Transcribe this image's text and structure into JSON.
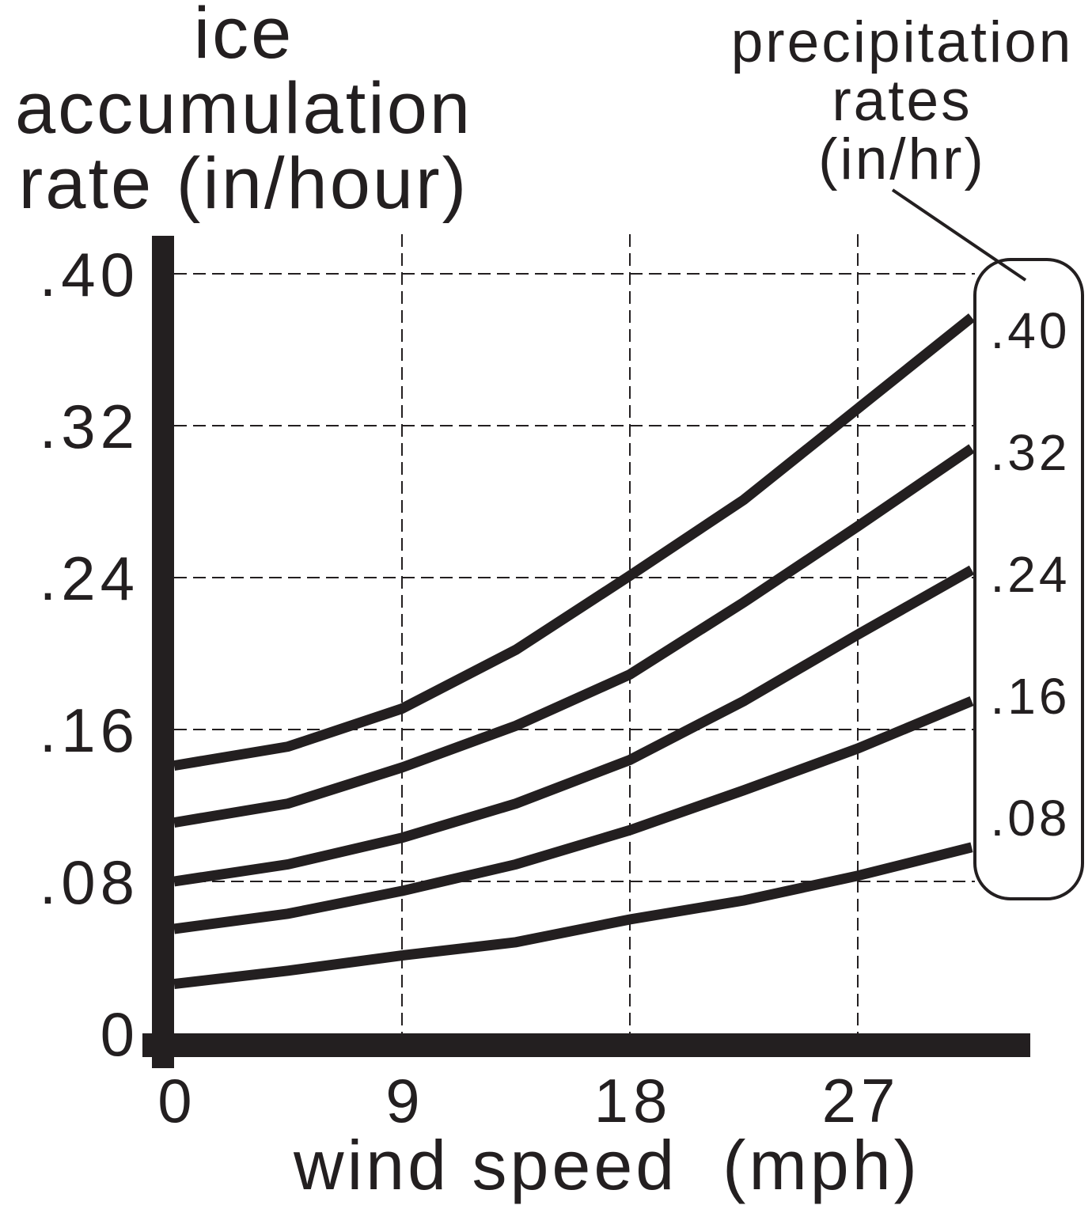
{
  "chart_data": {
    "type": "line",
    "ylabel": [
      "ice",
      "accumulation",
      "rate (in/hour)"
    ],
    "xlabel": "wind speed  (mph)",
    "legend_title": [
      "precipitation",
      "rates",
      "(in/hr)"
    ],
    "legend_placement": "right",
    "grid": true,
    "xticks": [
      "0",
      "9",
      "18",
      "27"
    ],
    "xtick_values": [
      0,
      9,
      18,
      27
    ],
    "yticks": [
      ".40",
      ".32",
      ".24",
      ".16",
      ".08",
      "0"
    ],
    "ytick_values": [
      0.4,
      0.32,
      0.24,
      0.16,
      0.08,
      0
    ],
    "xlim": [
      0,
      34
    ],
    "ylim": [
      0,
      0.42
    ],
    "x": [
      0,
      4.5,
      9,
      13.5,
      18,
      22.5,
      27,
      31.5
    ],
    "series": [
      {
        "name": ".40",
        "values": [
          0.141,
          0.151,
          0.171,
          0.202,
          0.241,
          0.281,
          0.329,
          0.377
        ]
      },
      {
        "name": ".32",
        "values": [
          0.111,
          0.121,
          0.14,
          0.162,
          0.189,
          0.227,
          0.267,
          0.308
        ]
      },
      {
        "name": ".24",
        "values": [
          0.08,
          0.089,
          0.103,
          0.121,
          0.144,
          0.175,
          0.21,
          0.244
        ]
      },
      {
        "name": ".16",
        "values": [
          0.055,
          0.063,
          0.075,
          0.089,
          0.107,
          0.128,
          0.15,
          0.175
        ]
      },
      {
        "name": ".08",
        "values": [
          0.026,
          0.033,
          0.041,
          0.048,
          0.06,
          0.07,
          0.083,
          0.098
        ]
      }
    ],
    "colors": {
      "ink": "#231f20",
      "background": "#ffffff"
    }
  }
}
